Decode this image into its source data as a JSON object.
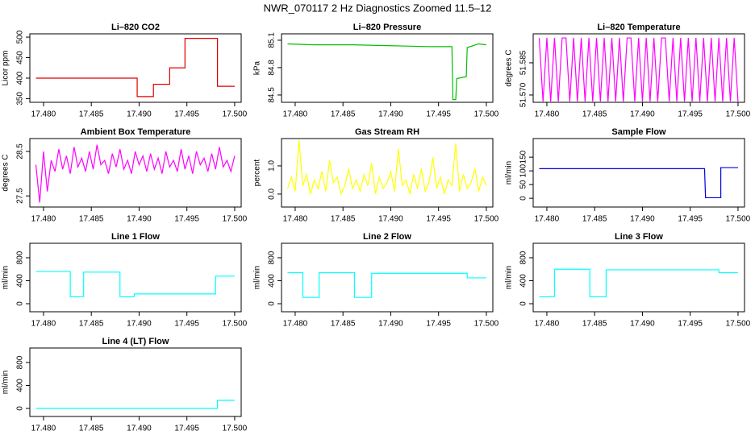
{
  "title": "NWR_070117  2 Hz Diagnostics Zoomed 11.5–12",
  "chart_data": [
    {
      "type": "line",
      "title": "Li–820 CO2",
      "ylabel": "Licor ppm",
      "color": "#e00000",
      "x": [
        17.4792,
        17.4898,
        17.4898,
        17.4915,
        17.4915,
        17.4932,
        17.4932,
        17.4948,
        17.4948,
        17.4982,
        17.4982,
        17.5
      ],
      "values": [
        400,
        400,
        355,
        355,
        385,
        385,
        425,
        425,
        497,
        497,
        380,
        380
      ],
      "xlim": [
        17.47857,
        17.50068
      ],
      "xticks": [
        {
          "value": 17.48,
          "label": "17.480"
        },
        {
          "value": 17.485,
          "label": "17.485"
        },
        {
          "value": 17.49,
          "label": "17.490"
        },
        {
          "value": 17.495,
          "label": "17.495"
        },
        {
          "value": 17.5,
          "label": "17.500"
        }
      ],
      "ylim": [
        341,
        508
      ],
      "yticks": [
        350,
        400,
        450,
        500
      ]
    },
    {
      "type": "line",
      "title": "Li–820 Pressure",
      "ylabel": "kPa",
      "color": "#00c000",
      "x": [
        17.4792,
        17.482,
        17.486,
        17.49,
        17.494,
        17.4964,
        17.4965,
        17.4968,
        17.4969,
        17.4979,
        17.498,
        17.4992,
        17.5
      ],
      "values": [
        85.06,
        85.05,
        85.05,
        85.04,
        85.03,
        85.03,
        84.45,
        84.45,
        84.68,
        84.7,
        85.02,
        85.06,
        85.05
      ],
      "xlim": [
        17.47857,
        17.50068
      ],
      "xticks": [
        {
          "value": 17.48,
          "label": "17.480"
        },
        {
          "value": 17.485,
          "label": "17.485"
        },
        {
          "value": 17.49,
          "label": "17.490"
        },
        {
          "value": 17.495,
          "label": "17.495"
        },
        {
          "value": 17.5,
          "label": "17.500"
        }
      ],
      "ylim": [
        84.42,
        85.17
      ],
      "yticks": [
        84.5,
        84.8,
        85.1
      ]
    },
    {
      "type": "line",
      "title": "Li–820 Temperature",
      "ylabel": "degrees C",
      "color": "#ff00ff",
      "x": [
        17.4792,
        17.4796,
        17.48,
        17.4804,
        17.4808,
        17.4812,
        17.4816,
        17.482,
        17.4824,
        17.4828,
        17.4832,
        17.4836,
        17.484,
        17.4844,
        17.4848,
        17.4852,
        17.4856,
        17.486,
        17.4864,
        17.4868,
        17.4872,
        17.4876,
        17.488,
        17.4884,
        17.4888,
        17.4892,
        17.4896,
        17.49,
        17.4904,
        17.4908,
        17.4912,
        17.4916,
        17.492,
        17.4924,
        17.4928,
        17.4932,
        17.4936,
        17.494,
        17.4944,
        17.4948,
        17.4952,
        17.4956,
        17.496,
        17.4964,
        17.4968,
        17.4972,
        17.4976,
        17.498,
        17.4984,
        17.4988,
        17.4992,
        17.4996,
        17.5
      ],
      "values": [
        51.5966,
        51.567,
        51.5966,
        51.567,
        51.5966,
        51.567,
        51.5966,
        51.5966,
        51.567,
        51.5966,
        51.567,
        51.5966,
        51.567,
        51.5966,
        51.567,
        51.5966,
        51.567,
        51.5966,
        51.567,
        51.5966,
        51.567,
        51.5966,
        51.567,
        51.5966,
        51.5966,
        51.567,
        51.5966,
        51.567,
        51.5966,
        51.567,
        51.5966,
        51.567,
        51.5966,
        51.5966,
        51.567,
        51.5966,
        51.567,
        51.5966,
        51.567,
        51.5966,
        51.567,
        51.5966,
        51.567,
        51.5966,
        51.567,
        51.5966,
        51.567,
        51.5966,
        51.567,
        51.5966,
        51.567,
        51.5966,
        51.567
      ],
      "xlim": [
        17.47857,
        17.50068
      ],
      "xticks": [
        {
          "value": 17.48,
          "label": "17.480"
        },
        {
          "value": 17.485,
          "label": "17.485"
        },
        {
          "value": 17.49,
          "label": "17.490"
        },
        {
          "value": 17.495,
          "label": "17.495"
        },
        {
          "value": 17.5,
          "label": "17.500"
        }
      ],
      "ylim": [
        51.5666,
        51.5985
      ],
      "yticks": [
        {
          "value": 51.57,
          "label": "51.570"
        },
        51.585
      ]
    },
    {
      "type": "line",
      "title": "Ambient Box Temperature",
      "ylabel": "degrees C",
      "color": "#ff00ff",
      "x": [
        17.4792,
        17.4796,
        17.48,
        17.4804,
        17.4808,
        17.4812,
        17.4816,
        17.482,
        17.4824,
        17.4828,
        17.4832,
        17.4836,
        17.484,
        17.4844,
        17.4848,
        17.4852,
        17.4856,
        17.486,
        17.4864,
        17.4868,
        17.4872,
        17.4876,
        17.488,
        17.4884,
        17.4888,
        17.4892,
        17.4896,
        17.49,
        17.4904,
        17.4908,
        17.4912,
        17.4916,
        17.492,
        17.4924,
        17.4928,
        17.4932,
        17.4936,
        17.494,
        17.4944,
        17.4948,
        17.4952,
        17.4956,
        17.496,
        17.4964,
        17.4968,
        17.4972,
        17.4976,
        17.498,
        17.4984,
        17.4988,
        17.4992,
        17.4996,
        17.5
      ],
      "values": [
        28.2,
        27.35,
        28.5,
        27.6,
        28.3,
        28.05,
        28.55,
        28.1,
        28.4,
        28.0,
        28.6,
        28.15,
        28.35,
        28.05,
        28.5,
        28.1,
        28.65,
        28.2,
        28.3,
        28.0,
        28.45,
        28.15,
        28.55,
        28.1,
        28.3,
        28.0,
        28.5,
        28.2,
        28.4,
        28.05,
        28.45,
        28.1,
        28.35,
        28.0,
        28.5,
        28.15,
        28.3,
        28.05,
        28.55,
        28.1,
        28.4,
        28.0,
        28.5,
        28.2,
        28.35,
        28.05,
        28.45,
        28.1,
        28.6,
        28.15,
        28.3,
        28.05,
        28.4
      ],
      "xlim": [
        17.47857,
        17.50068
      ],
      "xticks": [
        {
          "value": 17.48,
          "label": "17.480"
        },
        {
          "value": 17.485,
          "label": "17.485"
        },
        {
          "value": 17.49,
          "label": "17.490"
        },
        {
          "value": 17.495,
          "label": "17.495"
        },
        {
          "value": 17.5,
          "label": "17.500"
        }
      ],
      "ylim": [
        27.25,
        28.79
      ],
      "yticks": [
        27.5,
        28.5
      ]
    },
    {
      "type": "line",
      "title": "Gas Stream RH",
      "ylabel": "percent",
      "color": "#ffff00",
      "x": [
        17.4792,
        17.4796,
        17.48,
        17.4804,
        17.4808,
        17.4812,
        17.4816,
        17.482,
        17.4824,
        17.4828,
        17.4832,
        17.4836,
        17.484,
        17.4844,
        17.4848,
        17.4852,
        17.4856,
        17.486,
        17.4864,
        17.4868,
        17.4872,
        17.4876,
        17.488,
        17.4884,
        17.4888,
        17.4892,
        17.4896,
        17.49,
        17.4904,
        17.4908,
        17.4912,
        17.4916,
        17.492,
        17.4924,
        17.4928,
        17.4932,
        17.4936,
        17.494,
        17.4944,
        17.4948,
        17.4952,
        17.4956,
        17.496,
        17.4964,
        17.4968,
        17.4972,
        17.4976,
        17.498,
        17.4984,
        17.4988,
        17.4992,
        17.4996,
        17.5
      ],
      "values": [
        0.2,
        0.6,
        0.1,
        1.9,
        0.3,
        0.7,
        0.0,
        0.5,
        0.2,
        0.8,
        0.1,
        1.2,
        0.4,
        0.6,
        0.0,
        0.3,
        0.9,
        0.2,
        0.5,
        0.1,
        0.7,
        0.3,
        1.1,
        0.0,
        0.6,
        0.2,
        0.4,
        0.8,
        0.1,
        1.6,
        0.3,
        0.5,
        0.0,
        0.7,
        0.2,
        0.9,
        0.1,
        0.4,
        1.3,
        0.2,
        0.6,
        0.0,
        0.5,
        0.3,
        1.8,
        0.1,
        0.7,
        0.2,
        0.4,
        0.9,
        0.1,
        0.6,
        0.3
      ],
      "xlim": [
        17.47857,
        17.50068
      ],
      "xticks": [
        {
          "value": 17.48,
          "label": "17.480"
        },
        {
          "value": 17.485,
          "label": "17.485"
        },
        {
          "value": 17.49,
          "label": "17.490"
        },
        {
          "value": 17.495,
          "label": "17.495"
        },
        {
          "value": 17.5,
          "label": "17.500"
        }
      ],
      "ylim": [
        -0.46,
        1.97
      ],
      "yticks": [
        {
          "value": 0,
          "label": "0.0"
        },
        {
          "value": 1,
          "label": "1.0"
        }
      ]
    },
    {
      "type": "line",
      "title": "Sample Flow",
      "ylabel": "ml/min",
      "color": "#0000e0",
      "x": [
        17.4792,
        17.4965,
        17.4966,
        17.4982,
        17.4982,
        17.5
      ],
      "values": [
        108,
        108,
        2,
        2,
        112,
        112
      ],
      "xlim": [
        17.47857,
        17.50068
      ],
      "xticks": [
        {
          "value": 17.48,
          "label": "17.480"
        },
        {
          "value": 17.485,
          "label": "17.485"
        },
        {
          "value": 17.49,
          "label": "17.490"
        },
        {
          "value": 17.495,
          "label": "17.495"
        },
        {
          "value": 17.5,
          "label": "17.500"
        }
      ],
      "ylim": [
        -32,
        218
      ],
      "yticks": [
        0,
        50,
        100,
        150
      ]
    },
    {
      "type": "line",
      "title": "Line 1 Flow",
      "ylabel": "ml/min",
      "color": "#00ffff",
      "x": [
        17.4792,
        17.4828,
        17.4828,
        17.4842,
        17.4842,
        17.488,
        17.488,
        17.4895,
        17.4895,
        17.498,
        17.498,
        17.5
      ],
      "values": [
        560,
        560,
        120,
        120,
        550,
        550,
        120,
        120,
        170,
        170,
        480,
        480
      ],
      "xlim": [
        17.47857,
        17.50068
      ],
      "xticks": [
        {
          "value": 17.48,
          "label": "17.480"
        },
        {
          "value": 17.485,
          "label": "17.485"
        },
        {
          "value": 17.49,
          "label": "17.490"
        },
        {
          "value": 17.495,
          "label": "17.495"
        },
        {
          "value": 17.5,
          "label": "17.500"
        }
      ],
      "ylim": [
        -140,
        1052
      ],
      "yticks": [
        0,
        400,
        800
      ]
    },
    {
      "type": "line",
      "title": "Line 2 Flow",
      "ylabel": "ml/min",
      "color": "#00ffff",
      "x": [
        17.4792,
        17.4808,
        17.4808,
        17.4825,
        17.4825,
        17.4862,
        17.4862,
        17.488,
        17.488,
        17.498,
        17.498,
        17.5
      ],
      "values": [
        540,
        540,
        110,
        110,
        540,
        540,
        110,
        110,
        530,
        530,
        450,
        450
      ],
      "xlim": [
        17.47857,
        17.50068
      ],
      "xticks": [
        {
          "value": 17.48,
          "label": "17.480"
        },
        {
          "value": 17.485,
          "label": "17.485"
        },
        {
          "value": 17.49,
          "label": "17.490"
        },
        {
          "value": 17.495,
          "label": "17.495"
        },
        {
          "value": 17.5,
          "label": "17.500"
        }
      ],
      "ylim": [
        -140,
        1052
      ],
      "yticks": [
        0,
        400,
        800
      ]
    },
    {
      "type": "line",
      "title": "Line 3 Flow",
      "ylabel": "ml/min",
      "color": "#00ffff",
      "x": [
        17.4792,
        17.4808,
        17.4808,
        17.4845,
        17.4845,
        17.4862,
        17.4862,
        17.498,
        17.498,
        17.5
      ],
      "values": [
        120,
        120,
        600,
        600,
        120,
        120,
        590,
        590,
        540,
        540
      ],
      "xlim": [
        17.47857,
        17.50068
      ],
      "xticks": [
        {
          "value": 17.48,
          "label": "17.480"
        },
        {
          "value": 17.485,
          "label": "17.485"
        },
        {
          "value": 17.49,
          "label": "17.490"
        },
        {
          "value": 17.495,
          "label": "17.495"
        },
        {
          "value": 17.5,
          "label": "17.500"
        }
      ],
      "ylim": [
        -140,
        1052
      ],
      "yticks": [
        0,
        400,
        800
      ]
    },
    {
      "type": "line",
      "title": "Line 4 (LT) Flow",
      "ylabel": "ml/min",
      "color": "#00ffff",
      "x": [
        17.4792,
        17.4982,
        17.4982,
        17.5
      ],
      "values": [
        0,
        0,
        140,
        140
      ],
      "xlim": [
        17.47857,
        17.50068
      ],
      "xticks": [
        {
          "value": 17.48,
          "label": "17.480"
        },
        {
          "value": 17.485,
          "label": "17.485"
        },
        {
          "value": 17.49,
          "label": "17.490"
        },
        {
          "value": 17.495,
          "label": "17.495"
        },
        {
          "value": 17.5,
          "label": "17.500"
        }
      ],
      "ylim": [
        -140,
        1052
      ],
      "yticks": [
        0,
        400,
        800
      ]
    }
  ]
}
